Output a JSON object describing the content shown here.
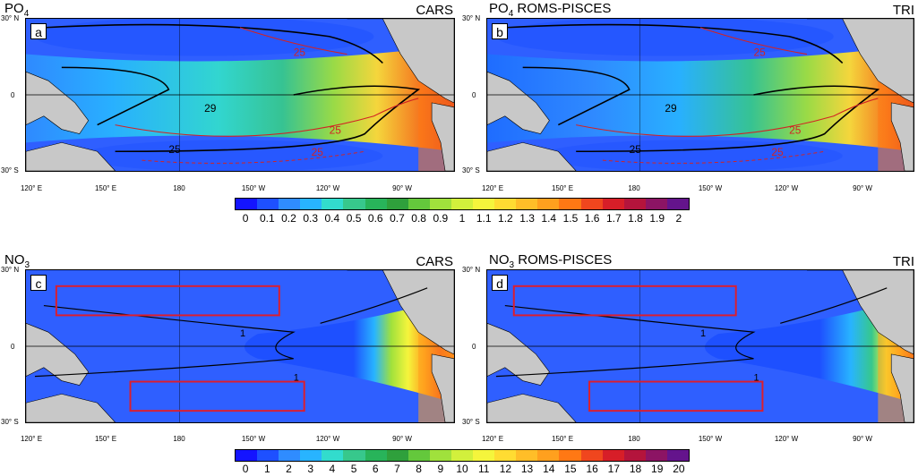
{
  "panels": [
    {
      "id": "a",
      "variable": "PO",
      "subscript": "4",
      "model": "",
      "source": "CARS",
      "letter": "a"
    },
    {
      "id": "b",
      "variable": "PO",
      "subscript": "4",
      "model": " ROMS-PISCES",
      "source": "TRI",
      "letter": "b"
    },
    {
      "id": "c",
      "variable": "NO",
      "subscript": "3",
      "model": "",
      "source": "CARS",
      "letter": "c"
    },
    {
      "id": "d",
      "variable": "NO",
      "subscript": "3",
      "model": " ROMS-PISCES",
      "source": "TRI",
      "letter": "d"
    }
  ],
  "lat_labels": [
    "30° N",
    "0",
    "30° S"
  ],
  "lon_labels": [
    "120° E",
    "150° E",
    "180",
    "150° W",
    "120° W",
    "90° W"
  ],
  "contour_labels": {
    "a": [
      "25",
      "29",
      "25",
      "25",
      "25"
    ],
    "b": [
      "25",
      "29",
      "25",
      "25",
      "25"
    ],
    "c": [
      "1",
      "1"
    ],
    "d": [
      "1",
      "1"
    ]
  },
  "colorbar_po4": {
    "ticks": [
      "0",
      "0.1",
      "0.2",
      "0.3",
      "0.4",
      "0.5",
      "0.6",
      "0.7",
      "0.8",
      "0.9",
      "1",
      "1.1",
      "1.2",
      "1.3",
      "1.4",
      "1.5",
      "1.6",
      "1.7",
      "1.8",
      "1.9",
      "2"
    ],
    "colors": [
      "#1414ff",
      "#1e50ff",
      "#2f8cff",
      "#28b4ff",
      "#32dccd",
      "#37c88c",
      "#28b45a",
      "#2fa03c",
      "#64c83c",
      "#a0e13c",
      "#d2f03c",
      "#f5f53c",
      "#ffdc32",
      "#ffbe28",
      "#ffa01e",
      "#ff7814",
      "#f0461e",
      "#d71e28",
      "#b4143c",
      "#8c1464",
      "#64148c"
    ]
  },
  "colorbar_no3": {
    "ticks": [
      "0",
      "1",
      "2",
      "3",
      "4",
      "5",
      "6",
      "7",
      "8",
      "9",
      "10",
      "11",
      "12",
      "13",
      "14",
      "15",
      "16",
      "17",
      "18",
      "19",
      "20"
    ],
    "colors": [
      "#1414ff",
      "#1e50ff",
      "#2f8cff",
      "#28b4ff",
      "#32dccd",
      "#37c88c",
      "#28b45a",
      "#2fa03c",
      "#64c83c",
      "#a0e13c",
      "#d2f03c",
      "#f5f53c",
      "#ffdc32",
      "#ffbe28",
      "#ffa01e",
      "#ff7814",
      "#f0461e",
      "#d71e28",
      "#b4143c",
      "#8c1464",
      "#64148c"
    ]
  },
  "colors": {
    "land": "#c8c8c8",
    "contour_sst": "#000000",
    "contour_red": "#d22323",
    "region_box": "#dc1e2d",
    "ocean_low": "#2f5fff"
  }
}
